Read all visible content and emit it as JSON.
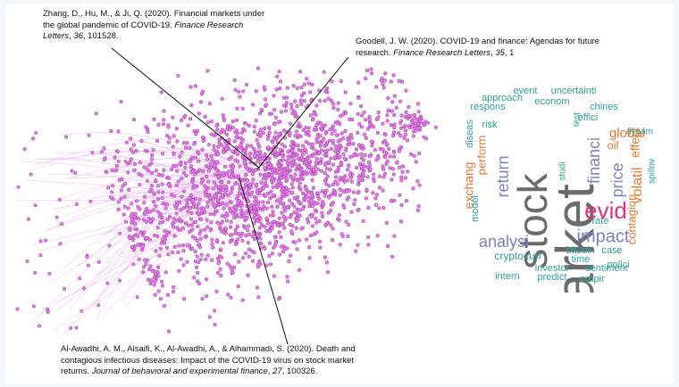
{
  "citations": [
    {
      "id": "zhang",
      "line1": "Zhang, D., Hu, M., & Ji, Q. (2020). Financial markets under",
      "line2a": "the global pandemic of COVID-19. ",
      "line2b": "Finance Research",
      "line3a": "Letters",
      "line3b": ", ",
      "line3c": "36",
      "line3d": ", 101528."
    },
    {
      "id": "goodell",
      "line1": "Goodell, J. W. (2020). COVID-19 and finance: Agendas for future",
      "line2a": "research. ",
      "line2b": "Finance Research Letters",
      "line2c": ", ",
      "line2d": "35",
      "line2e": ", 1"
    },
    {
      "id": "alawadhi",
      "line1": "Al-Awadhi, A. M., Alsaifi, K., Al-Awadhi, A., & Alhammadi, S. (2020). Death and",
      "line2": "contagious infectious diseases: Impact of the COVID-19 virus on stock market",
      "line3a": "returns. ",
      "line3b": "Journal of behavioral and experimental finance",
      "line3c": ", ",
      "line3d": "27",
      "line3e": ", 100326."
    }
  ],
  "network": {
    "node_color": "#e27de6",
    "node_stroke": "#a03aa8",
    "edge_color": "#e79ae8",
    "pointer_color": "#111111"
  },
  "wordcloud": {
    "words": [
      {
        "text": "market",
        "color": "#6b6b6b"
      },
      {
        "text": "stock",
        "color": "#6b6b6b"
      },
      {
        "text": "evid",
        "color": "#e0308a"
      },
      {
        "text": "impact",
        "color": "#7f7fc0"
      },
      {
        "text": "analysi",
        "color": "#7f7fc0"
      },
      {
        "text": "return",
        "color": "#7f7fc0"
      },
      {
        "text": "financi",
        "color": "#7f7fc0"
      },
      {
        "text": "price",
        "color": "#7f7fc0"
      },
      {
        "text": "volatil",
        "color": "#e8772e"
      },
      {
        "text": "global",
        "color": "#e8772e"
      },
      {
        "text": "effect",
        "color": "#e8772e"
      },
      {
        "text": "contagion",
        "color": "#e8772e"
      },
      {
        "text": "exchang",
        "color": "#e8772e"
      },
      {
        "text": "perform",
        "color": "#e8772e"
      },
      {
        "text": "oil",
        "color": "#e8772e"
      },
      {
        "text": "cryptocurr",
        "color": "#2aa198"
      },
      {
        "text": "bitcoin",
        "color": "#2aa198"
      },
      {
        "text": "case",
        "color": "#2aa198"
      },
      {
        "text": "time",
        "color": "#2aa198"
      },
      {
        "text": "investor",
        "color": "#2aa198"
      },
      {
        "text": "sentiment",
        "color": "#2aa198"
      },
      {
        "text": "polici",
        "color": "#2aa198"
      },
      {
        "text": "intern",
        "color": "#2aa198"
      },
      {
        "text": "predict",
        "color": "#2aa198"
      },
      {
        "text": "empir",
        "color": "#2aa198"
      },
      {
        "text": "rate",
        "color": "#2aa198"
      },
      {
        "text": "model",
        "color": "#2aa198"
      },
      {
        "text": "diseas",
        "color": "#2aa198"
      },
      {
        "text": "risk",
        "color": "#2aa198"
      },
      {
        "text": "respons",
        "color": "#2aa198"
      },
      {
        "text": "approach",
        "color": "#2aa198"
      },
      {
        "text": "event",
        "color": "#2aa198"
      },
      {
        "text": "uncertainti",
        "color": "#2aa198"
      },
      {
        "text": "econom",
        "color": "#2aa198"
      },
      {
        "text": "chines",
        "color": "#2aa198"
      },
      {
        "text": "test",
        "color": "#2aa198"
      },
      {
        "text": "effici",
        "color": "#2aa198"
      },
      {
        "text": "dynam",
        "color": "#2aa198"
      },
      {
        "text": "studi",
        "color": "#2aa198"
      },
      {
        "text": "spillov",
        "color": "#2aa198"
      }
    ]
  }
}
